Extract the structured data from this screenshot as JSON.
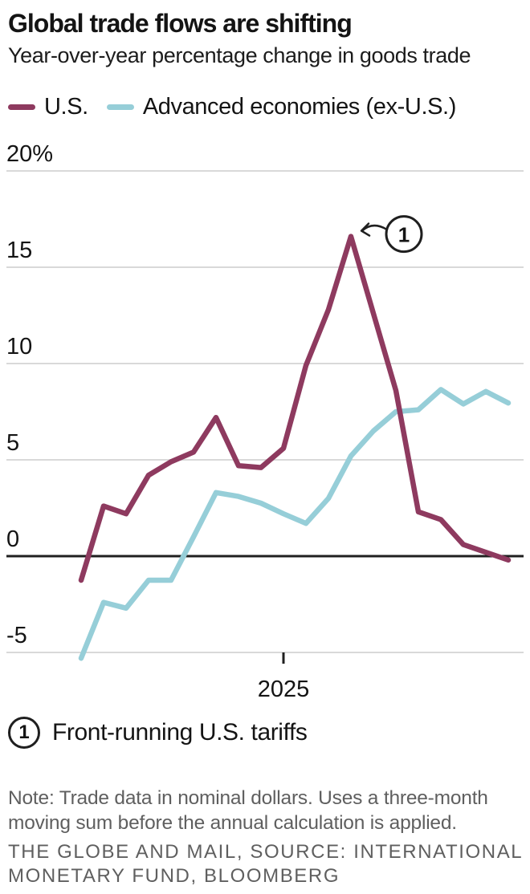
{
  "header": {
    "title": "Global trade flows are shifting",
    "subtitle": "Year-over-year percentage change in goods trade"
  },
  "legend": {
    "items": [
      {
        "label": "U.S.",
        "color": "#8e3a5f"
      },
      {
        "label": "Advanced economies (ex-U.S.)",
        "color": "#96ced8"
      }
    ]
  },
  "chart_data": {
    "type": "line",
    "title": "Global trade flows are shifting",
    "subtitle": "Year-over-year percentage change in goods trade",
    "y_ticks": {
      "values": [
        20,
        15,
        10,
        5,
        0,
        -5
      ],
      "labels": [
        "20%",
        "15",
        "10",
        "5",
        "0",
        "-5"
      ]
    },
    "ylim": [
      -7.5,
      21.5
    ],
    "grid": "horizontal",
    "zero_line": true,
    "x_tick": {
      "label": "2025",
      "index": 9
    },
    "points_count": 20,
    "series": [
      {
        "name": "U.S.",
        "color": "#8e3a5f",
        "values": [
          -1.25,
          2.6,
          2.2,
          4.2,
          4.9,
          5.4,
          7.2,
          4.7,
          4.6,
          5.6,
          9.9,
          12.8,
          16.6,
          12.6,
          8.6,
          2.3,
          1.9,
          0.6,
          0.2,
          -0.2
        ]
      },
      {
        "name": "Advanced economies (ex-U.S.)",
        "color": "#96ced8",
        "values": [
          -5.3,
          -2.4,
          -2.7,
          -1.25,
          -1.25,
          1.0,
          3.3,
          3.1,
          2.75,
          2.2,
          1.7,
          3.0,
          5.2,
          6.5,
          7.5,
          7.6,
          8.65,
          7.9,
          8.55,
          7.95
        ]
      }
    ],
    "annotation": {
      "marker": "1",
      "series": "U.S.",
      "point_index": 12,
      "peak_value": 16.6,
      "label": "Front-running U.S. tariffs"
    }
  },
  "annotation_legend": {
    "marker": "1",
    "text": "Front-running U.S. tariffs"
  },
  "note": {
    "lines": [
      "Note: Trade data in nominal dollars. Uses a three-month",
      "moving sum before the annual calculation is applied."
    ]
  },
  "source": {
    "lines": [
      "THE GLOBE AND MAIL, SOURCE: INTERNATIONAL",
      "MONETARY FUND, BLOOMBERG"
    ]
  },
  "colors": {
    "gridline": "#d9d9d9",
    "zero_line": "#1f1f1f",
    "text": "#141414",
    "muted_text": "#5f5f5f"
  }
}
